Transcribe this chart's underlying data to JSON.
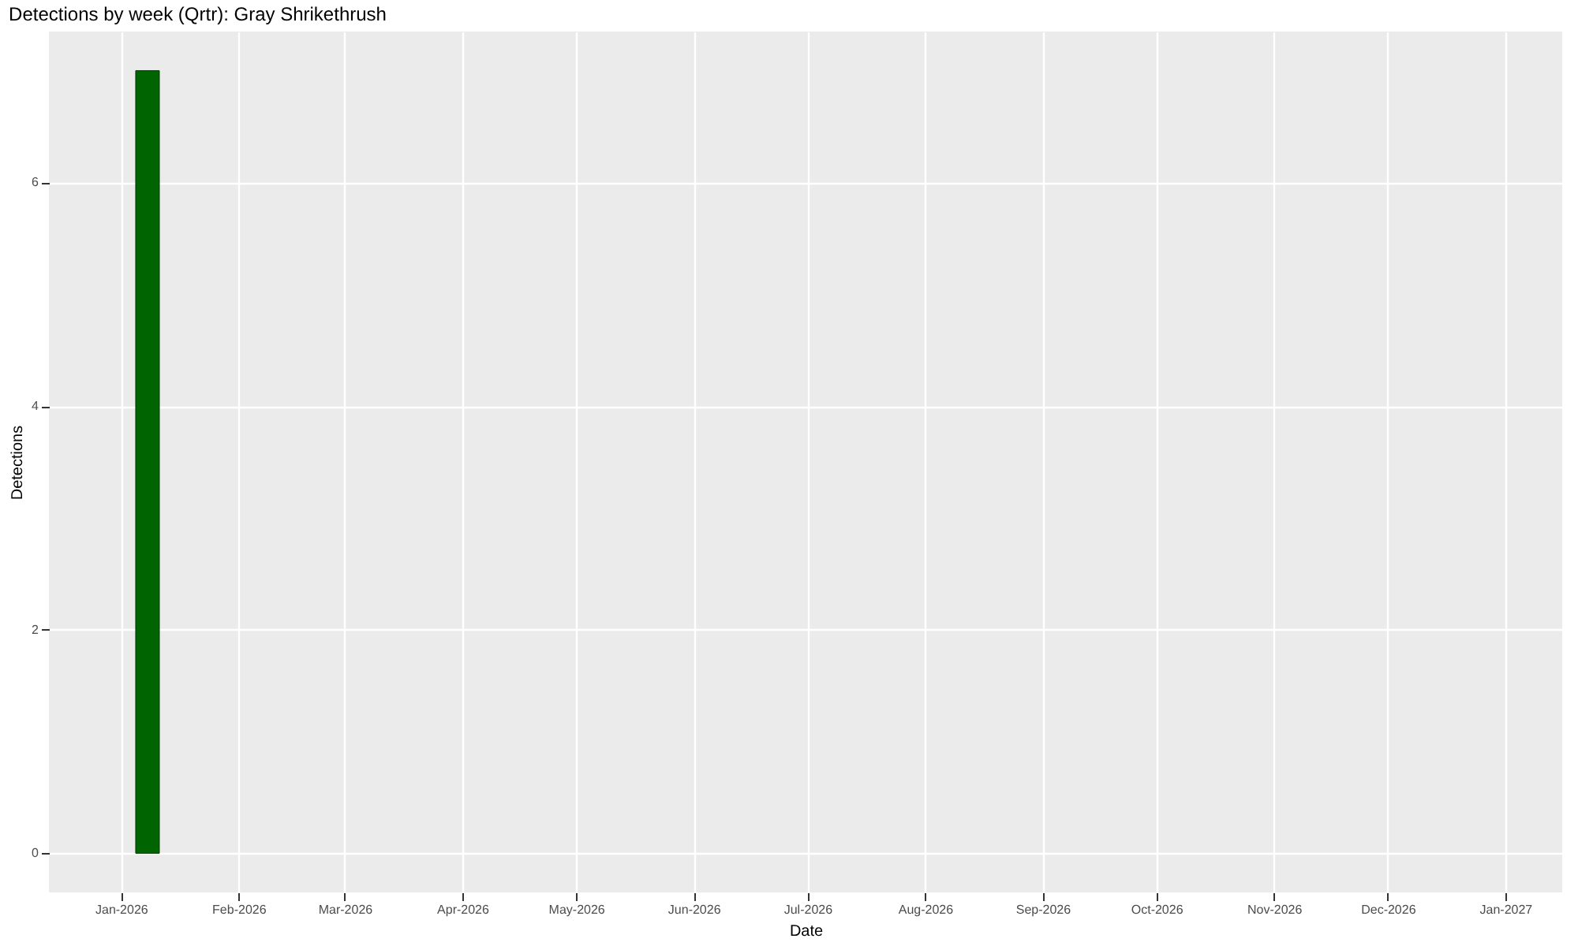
{
  "chart_data": {
    "type": "bar",
    "title": "Detections by week (Qrtr): Gray Shrikethrush",
    "xlabel": "Date",
    "ylabel": "Detections",
    "x": [
      "2026-01-08"
    ],
    "series": [
      {
        "color": "#006400",
        "values": [
          7
        ]
      }
    ],
    "xlim": [
      "2025-12-13",
      "2027-01-16"
    ],
    "xticks": [
      {
        "value": "2026-01-01",
        "label": "Jan-2026"
      },
      {
        "value": "2026-02-01",
        "label": "Feb-2026"
      },
      {
        "value": "2026-03-01",
        "label": "Mar-2026"
      },
      {
        "value": "2026-04-01",
        "label": "Apr-2026"
      },
      {
        "value": "2026-05-01",
        "label": "May-2026"
      },
      {
        "value": "2026-06-01",
        "label": "Jun-2026"
      },
      {
        "value": "2026-07-01",
        "label": "Jul-2026"
      },
      {
        "value": "2026-08-01",
        "label": "Aug-2026"
      },
      {
        "value": "2026-09-01",
        "label": "Sep-2026"
      },
      {
        "value": "2026-10-01",
        "label": "Oct-2026"
      },
      {
        "value": "2026-11-01",
        "label": "Nov-2026"
      },
      {
        "value": "2026-12-01",
        "label": "Dec-2026"
      },
      {
        "value": "2027-01-01",
        "label": "Jan-2027"
      }
    ],
    "ylim": [
      -0.35,
      7.35
    ],
    "yticks": [
      0,
      2,
      4,
      6
    ],
    "grid": true,
    "legend": false
  }
}
